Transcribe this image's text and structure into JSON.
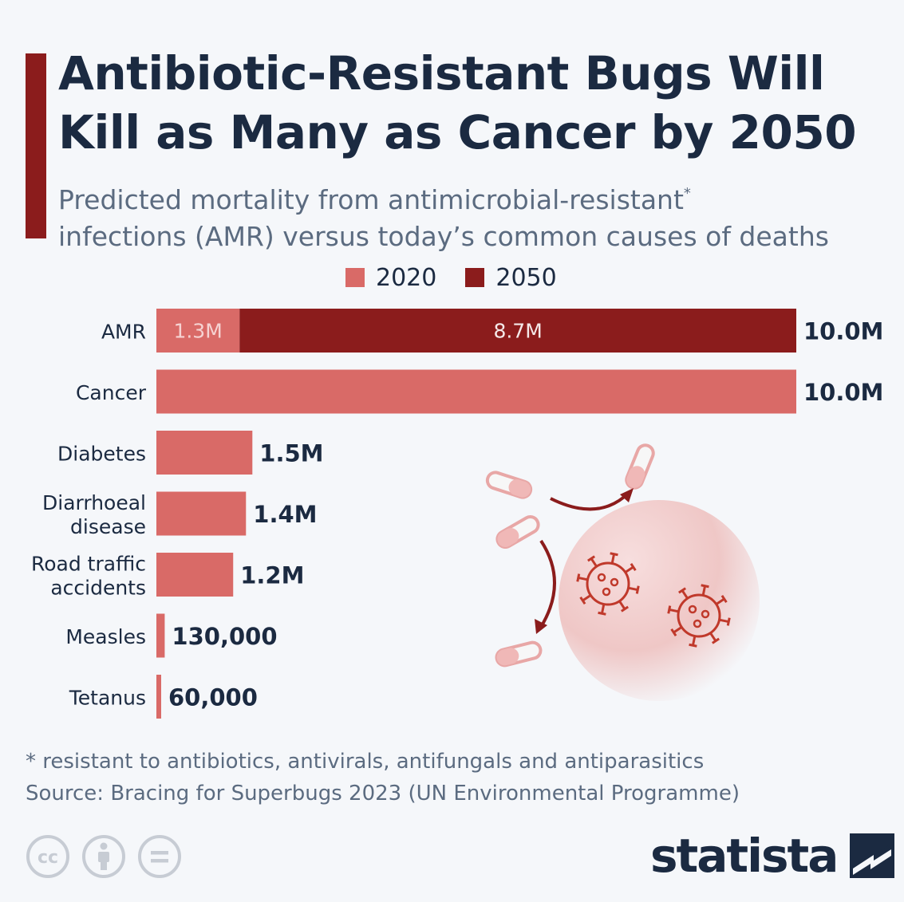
{
  "title": "Antibiotic-Resistant Bugs Will Kill as Many as Cancer by 2050",
  "subtitle": "Predicted mortality from antimicrobial-resistant",
  "subtitle_sup": "*",
  "subtitle_line2": "infections (AMR) versus today’s common causes of deaths",
  "colors": {
    "accent": "#8b1c1c",
    "series_2020": "#d96a67",
    "series_2050": "#8b1c1c",
    "text": "#1b2a41"
  },
  "chart_data": {
    "type": "bar",
    "orientation": "horizontal",
    "stacked": true,
    "legend": [
      "2020",
      "2050"
    ],
    "legend_position": "top",
    "categories": [
      "AMR",
      "Cancer",
      "Diabetes",
      "Diarrhoeal disease",
      "Road traffic accidents",
      "Measles",
      "Tetanus"
    ],
    "category_lines": [
      [
        "AMR"
      ],
      [
        "Cancer"
      ],
      [
        "Diabetes"
      ],
      [
        "Diarrhoeal",
        "disease"
      ],
      [
        "Road traffic",
        "accidents"
      ],
      [
        "Measles"
      ],
      [
        "Tetanus"
      ]
    ],
    "series": [
      {
        "name": "2020",
        "values": [
          1300000,
          10000000,
          1500000,
          1400000,
          1200000,
          130000,
          60000
        ],
        "labels": [
          "1.3M",
          "",
          "",
          "",
          "",
          "",
          ""
        ]
      },
      {
        "name": "2050",
        "values": [
          8700000,
          0,
          0,
          0,
          0,
          0,
          0
        ],
        "labels": [
          "8.7M",
          "",
          "",
          "",
          "",
          "",
          ""
        ]
      }
    ],
    "totals": [
      "10.0M",
      "10.0M",
      "1.5M",
      "1.4M",
      "1.2M",
      "130,000",
      "60,000"
    ],
    "xlim": [
      0,
      10000000
    ]
  },
  "footnote": "* resistant to antibiotics, antivirals, antifungals and antiparasitics",
  "source": "Source: Bracing for Superbugs 2023 (UN Environmental Programme)",
  "brand": "statista",
  "icons": [
    "creative-commons-icon",
    "attribution-icon",
    "no-derivatives-icon",
    "statista-logo-icon",
    "pill-icon",
    "virus-icon"
  ]
}
